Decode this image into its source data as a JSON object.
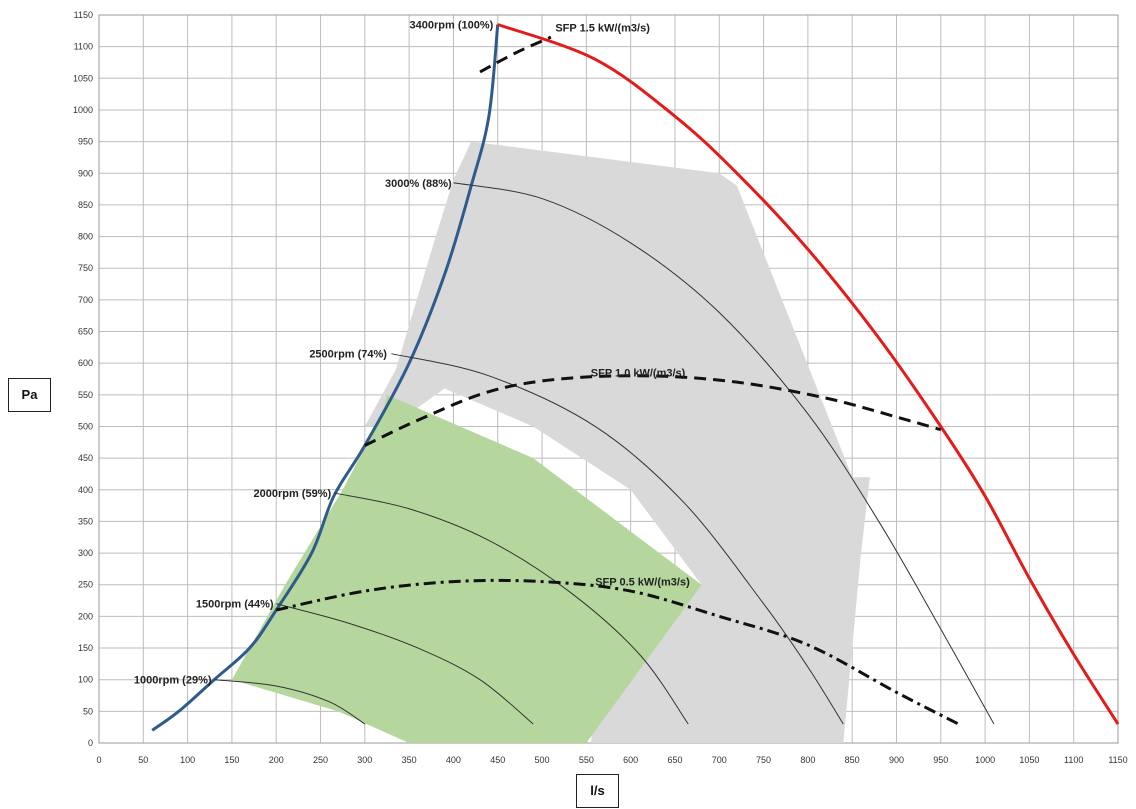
{
  "chart_data": {
    "type": "line",
    "xlabel": "l/s",
    "ylabel": "Pa",
    "xlim": [
      0,
      1150
    ],
    "ylim": [
      0,
      1150
    ],
    "x_ticks": [
      0,
      50,
      100,
      150,
      200,
      250,
      300,
      350,
      400,
      450,
      500,
      550,
      600,
      650,
      700,
      750,
      800,
      850,
      900,
      950,
      1000,
      1050,
      1100,
      1150
    ],
    "y_ticks": [
      0,
      50,
      100,
      150,
      200,
      250,
      300,
      350,
      400,
      450,
      500,
      550,
      600,
      650,
      700,
      750,
      800,
      850,
      900,
      950,
      1000,
      1050,
      1100,
      1150
    ],
    "grid": true,
    "colors": {
      "system_curve": "#2e5b8c",
      "max_curve": "#e31b1b",
      "rpm_curves": "#333333",
      "sfp_lines": "#111111",
      "gray_region": "#d9d9d9",
      "green_region": "#b5d69c"
    },
    "regions": [
      {
        "name": "gray-region",
        "points": [
          [
            300,
            500
          ],
          [
            335,
            590
          ],
          [
            380,
            800
          ],
          [
            400,
            890
          ],
          [
            420,
            950
          ],
          [
            700,
            900
          ],
          [
            720,
            880
          ],
          [
            850,
            420
          ],
          [
            870,
            420
          ],
          [
            860,
            300
          ],
          [
            840,
            0
          ],
          [
            555,
            0
          ],
          [
            560,
            50
          ],
          [
            620,
            200
          ],
          [
            680,
            250
          ],
          [
            600,
            400
          ],
          [
            490,
            500
          ],
          [
            390,
            560
          ],
          [
            330,
            500
          ]
        ]
      },
      {
        "name": "green-region",
        "points": [
          [
            325,
            550
          ],
          [
            490,
            450
          ],
          [
            680,
            250
          ],
          [
            550,
            0
          ],
          [
            350,
            0
          ],
          [
            270,
            50
          ],
          [
            150,
            100
          ],
          [
            210,
            250
          ],
          [
            275,
            400
          ],
          [
            320,
            520
          ]
        ]
      }
    ],
    "series": [
      {
        "name": "system-curve",
        "points": [
          [
            60,
            20
          ],
          [
            90,
            50
          ],
          [
            130,
            100
          ],
          [
            170,
            150
          ],
          [
            200,
            210
          ],
          [
            240,
            300
          ],
          [
            265,
            390
          ],
          [
            300,
            470
          ],
          [
            350,
            600
          ],
          [
            390,
            740
          ],
          [
            420,
            880
          ],
          [
            440,
            990
          ],
          [
            450,
            1135
          ]
        ]
      },
      {
        "name": "max-curve",
        "points": [
          [
            450,
            1135
          ],
          [
            560,
            1080
          ],
          [
            650,
            990
          ],
          [
            720,
            900
          ],
          [
            800,
            780
          ],
          [
            880,
            640
          ],
          [
            950,
            500
          ],
          [
            1000,
            390
          ],
          [
            1050,
            260
          ],
          [
            1100,
            140
          ],
          [
            1150,
            30
          ]
        ]
      },
      {
        "name": "rpm-1000",
        "points": [
          [
            130,
            100
          ],
          [
            200,
            90
          ],
          [
            260,
            65
          ],
          [
            300,
            30
          ]
        ]
      },
      {
        "name": "rpm-1500",
        "points": [
          [
            200,
            220
          ],
          [
            280,
            190
          ],
          [
            360,
            150
          ],
          [
            430,
            100
          ],
          [
            490,
            30
          ]
        ]
      },
      {
        "name": "rpm-2000",
        "points": [
          [
            265,
            395
          ],
          [
            350,
            370
          ],
          [
            440,
            320
          ],
          [
            530,
            240
          ],
          [
            610,
            140
          ],
          [
            665,
            30
          ]
        ]
      },
      {
        "name": "rpm-2500",
        "points": [
          [
            330,
            615
          ],
          [
            440,
            580
          ],
          [
            560,
            500
          ],
          [
            660,
            380
          ],
          [
            750,
            220
          ],
          [
            800,
            120
          ],
          [
            840,
            30
          ]
        ]
      },
      {
        "name": "rpm-3000",
        "points": [
          [
            400,
            885
          ],
          [
            500,
            860
          ],
          [
            600,
            790
          ],
          [
            700,
            680
          ],
          [
            800,
            520
          ],
          [
            880,
            350
          ],
          [
            950,
            180
          ],
          [
            1010,
            30
          ]
        ]
      },
      {
        "name": "sfp-1-5",
        "points": [
          [
            430,
            1060
          ],
          [
            470,
            1090
          ],
          [
            510,
            1115
          ]
        ]
      },
      {
        "name": "sfp-1-0",
        "points": [
          [
            300,
            470
          ],
          [
            360,
            510
          ],
          [
            440,
            555
          ],
          [
            520,
            575
          ],
          [
            620,
            580
          ],
          [
            720,
            570
          ],
          [
            820,
            545
          ],
          [
            900,
            515
          ],
          [
            950,
            495
          ]
        ]
      },
      {
        "name": "sfp-0-5",
        "points": [
          [
            200,
            210
          ],
          [
            300,
            240
          ],
          [
            400,
            255
          ],
          [
            500,
            255
          ],
          [
            600,
            240
          ],
          [
            700,
            200
          ],
          [
            800,
            155
          ],
          [
            900,
            80
          ],
          [
            970,
            30
          ]
        ]
      }
    ],
    "annotations": [
      {
        "text": "3400rpm (100%)",
        "x": 445,
        "y": 1135,
        "anchor": "end"
      },
      {
        "text": "SFP 1.5 kW/(m3/s)",
        "x": 515,
        "y": 1130,
        "anchor": "start"
      },
      {
        "text": "3000% (88%)",
        "x": 398,
        "y": 885,
        "anchor": "end"
      },
      {
        "text": "2500rpm (74%)",
        "x": 325,
        "y": 615,
        "anchor": "end"
      },
      {
        "text": "SFP 1.0 kW/(m3/s)",
        "x": 555,
        "y": 585,
        "anchor": "start"
      },
      {
        "text": "2000rpm (59%)",
        "x": 262,
        "y": 395,
        "anchor": "end"
      },
      {
        "text": "SFP 0.5 kW/(m3/s)",
        "x": 560,
        "y": 255,
        "anchor": "start"
      },
      {
        "text": "1500rpm (44%)",
        "x": 197,
        "y": 220,
        "anchor": "end"
      },
      {
        "text": "1000rpm (29%)",
        "x": 127,
        "y": 100,
        "anchor": "end"
      }
    ]
  }
}
